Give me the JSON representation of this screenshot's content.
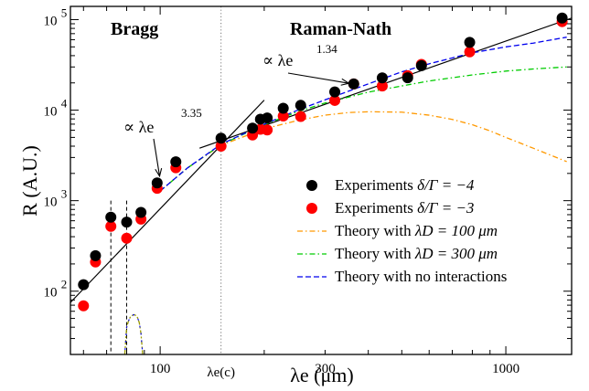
{
  "chart_data": {
    "type": "scatter",
    "xscale": "log",
    "yscale": "log",
    "xlim": [
      55,
      1550
    ],
    "ylim": [
      20,
      140000
    ],
    "xlabel": "λe (μm)",
    "ylabel": "R (A.U.)",
    "x_ticks": [
      {
        "value": 100,
        "label": "100"
      },
      {
        "value": 300,
        "label": "300"
      },
      {
        "value": 1000,
        "label": "1000"
      }
    ],
    "x_critical": {
      "value": 150,
      "label": "λe(c)"
    },
    "y_ticks": [
      {
        "value": 100,
        "base": "10",
        "exp": "2"
      },
      {
        "value": 1000,
        "base": "10",
        "exp": "3"
      },
      {
        "value": 10000,
        "base": "10",
        "exp": "4"
      },
      {
        "value": 100000,
        "base": "10",
        "exp": "5"
      }
    ],
    "regions": [
      {
        "label": "Bragg"
      },
      {
        "label": "Raman-Nath"
      }
    ],
    "annotations": [
      {
        "prefix": "∝ λe",
        "exponent": "3.35",
        "point": [
          100,
          1700
        ]
      },
      {
        "prefix": "∝ λe",
        "exponent": "1.34",
        "point": [
          360,
          19500
        ]
      }
    ],
    "series": [
      {
        "name": "Experiments δ/Γ = −4",
        "marker": "circle",
        "color": "#000000",
        "x": [
          60,
          65,
          72,
          80,
          88,
          98,
          111,
          150,
          185,
          195,
          204,
          227,
          255,
          320,
          363,
          439,
          520,
          570,
          786,
          1455
        ],
        "y": [
          118,
          247,
          656,
          580,
          741,
          1570,
          2690,
          4900,
          6330,
          7950,
          8200,
          10500,
          11300,
          15900,
          19500,
          22700,
          22800,
          31000,
          56000,
          104000
        ]
      },
      {
        "name": "Experiments δ/Γ = −3",
        "marker": "circle",
        "color": "#ff0000",
        "x": [
          60,
          65,
          72,
          80,
          88,
          98,
          111,
          150,
          185,
          195,
          204,
          227,
          255,
          320,
          363,
          439,
          520,
          570,
          786,
          1455
        ],
        "y": [
          69,
          210,
          520,
          385,
          625,
          1370,
          2310,
          4000,
          5320,
          6140,
          6040,
          8600,
          8500,
          12800,
          19500,
          18500,
          24000,
          32000,
          44000,
          95000
        ]
      },
      {
        "name": "Theory with λD = 100 μm",
        "style": "dash-dot",
        "color": "#ff9900",
        "x": [
          100,
          120,
          150,
          200,
          250,
          300,
          350,
          400,
          500,
          600,
          700,
          800,
          900,
          1000,
          1200,
          1500
        ],
        "y": [
          1280,
          2300,
          4100,
          6200,
          7700,
          8800,
          9400,
          9600,
          9500,
          8800,
          7900,
          6900,
          5900,
          5000,
          3800,
          2700
        ]
      },
      {
        "name": "Theory with λD = 300 μm",
        "style": "dash-dot",
        "color": "#00cc00",
        "x": [
          100,
          120,
          150,
          200,
          250,
          300,
          400,
          500,
          600,
          800,
          1000,
          1200,
          1500
        ],
        "y": [
          1280,
          2300,
          4150,
          6900,
          9600,
          12000,
          15800,
          18500,
          21000,
          24500,
          27000,
          28500,
          30000
        ]
      },
      {
        "name": "Theory with no interactions",
        "style": "dashed",
        "color": "#0000ee",
        "x": [
          100,
          120,
          150,
          200,
          250,
          300,
          400,
          500,
          600,
          800,
          1000,
          1200,
          1500
        ],
        "y": [
          1280,
          2300,
          4200,
          7000,
          10000,
          13000,
          19500,
          26500,
          32500,
          43000,
          50000,
          55000,
          64000
        ]
      },
      {
        "name": "Theory low-λ branch",
        "style": "dash-mix",
        "color": "#999900",
        "x": [
          79,
          80,
          81,
          82,
          83,
          84,
          85,
          86,
          87,
          88,
          89
        ],
        "y": [
          20,
          40,
          47,
          52,
          54,
          55,
          54,
          51,
          45,
          34,
          20
        ]
      }
    ],
    "fit_lines": [
      {
        "name": "fit exponent 3.35",
        "x": [
          55,
          200
        ],
        "y": [
          75,
          12900
        ]
      },
      {
        "name": "fit exponent 1.34",
        "x": [
          130,
          1550
        ],
        "y": [
          3800,
          104000
        ]
      }
    ],
    "vertical_markers": [
      {
        "style": "dashed",
        "x": 72,
        "y": [
          20,
          1000
        ]
      },
      {
        "style": "dashed",
        "x": 80,
        "y": [
          20,
          1000
        ]
      },
      {
        "style": "dotted",
        "x": 150,
        "y": [
          20,
          140000
        ]
      }
    ],
    "legend": {
      "position": "bottom-right",
      "entries": [
        {
          "label_main": "Experiments ",
          "label_math": "δ/Γ = −4",
          "type": "marker",
          "color": "#000000"
        },
        {
          "label_main": "Experiments ",
          "label_math": "δ/Γ = −3",
          "type": "marker",
          "color": "#ff0000"
        },
        {
          "label_main": "Theory with ",
          "label_math": "λD = 100 μm",
          "type": "line",
          "style": "dash-dot",
          "color": "#ff9900"
        },
        {
          "label_main": "Theory with ",
          "label_math": "λD = 300 μm",
          "type": "line",
          "style": "dash-dot",
          "color": "#00cc00"
        },
        {
          "label_main": "Theory with no interactions",
          "label_math": "",
          "type": "line",
          "style": "dashed",
          "color": "#0000ee"
        }
      ]
    },
    "grid": false
  }
}
